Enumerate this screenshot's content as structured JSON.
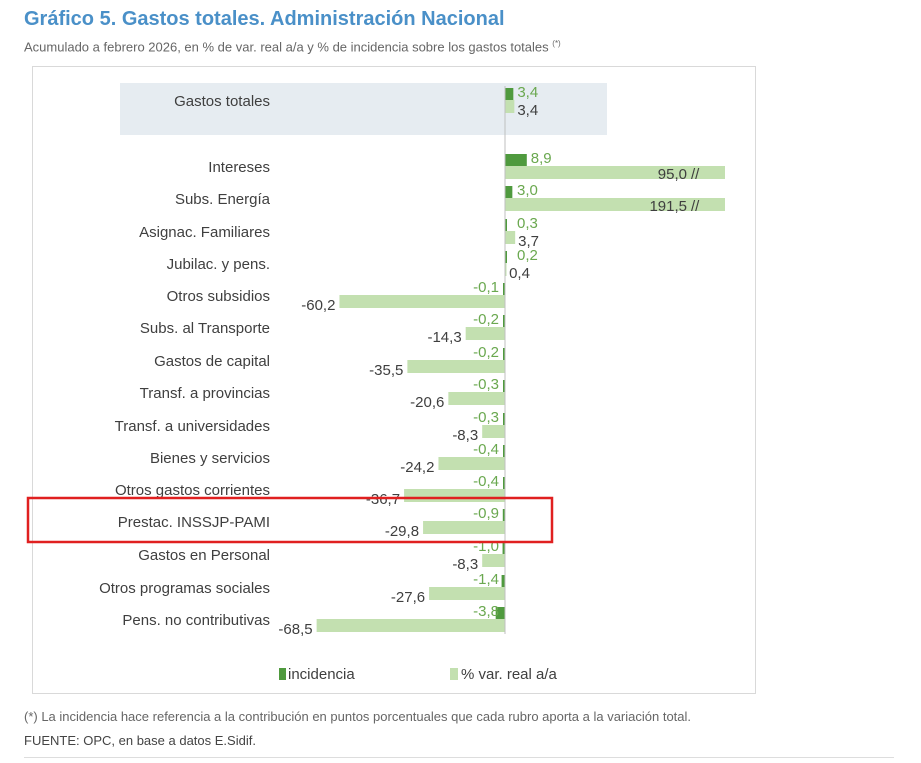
{
  "header": {
    "title": "Gráfico 5. Gastos totales. Administración Nacional",
    "subtitle": "Acumulado a febrero 2026, en % de var. real a/a y % de incidencia sobre los gastos totales",
    "subtitle_mark": "(*)"
  },
  "footer": {
    "note": "(*) La incidencia hace referencia a la contribución en puntos porcentuales que cada rubro aporta a la variación total.",
    "source": "FUENTE: OPC, en base a datos E.Sidif."
  },
  "colors": {
    "incidencia": "#4f9a3e",
    "var_real": "#c3e0b0",
    "label_green": "#6aa84f",
    "total_band": "#e6ecf1",
    "highlight": "#e02020",
    "text": "#595959"
  },
  "chart_data": {
    "type": "bar",
    "orientation": "horizontal",
    "categories": [
      "Gastos totales",
      "Intereses",
      "Subs. Energía",
      "Asignac. Familiares",
      "Jubilac. y pens.",
      "Otros subsidios",
      "Subs. al Transporte",
      "Gastos de capital",
      "Transf. a provincias",
      "Transf. a universidades",
      "Bienes y servicios",
      "Otros gastos corrientes",
      "Prestac. INSSJP-PAMI",
      "Gastos en Personal",
      "Otros programas sociales",
      "Pens. no contributivas"
    ],
    "series": [
      {
        "name": "incidencia",
        "values": [
          3.4,
          8.9,
          3.0,
          0.3,
          0.2,
          -0.1,
          -0.2,
          -0.2,
          -0.3,
          -0.3,
          -0.4,
          -0.4,
          -0.9,
          -1.0,
          -1.4,
          -3.8
        ],
        "labels": [
          "3,4",
          "8,9",
          "3,0",
          "0,3",
          "0,2",
          "-0,1",
          "-0,2",
          "-0,2",
          "-0,3",
          "-0,3",
          "-0,4",
          "-0,4",
          "-0,9",
          "-1,0",
          "-1,4",
          "-3,8"
        ]
      },
      {
        "name": "% var. real a/a",
        "values": [
          3.4,
          95.0,
          191.5,
          3.7,
          0.4,
          -60.2,
          -14.3,
          -35.5,
          -20.6,
          -8.3,
          -24.2,
          -36.7,
          -29.8,
          -8.3,
          -27.6,
          -68.5
        ],
        "labels": [
          "3,4",
          "95,0",
          "191,5",
          "3,7",
          "0,4",
          "-60,2",
          "-14,3",
          "-35,5",
          "-20,6",
          "-8,3",
          "-24,2",
          "-36,7",
          "-29,8",
          "-8,3",
          "-27,6",
          "-68,5"
        ],
        "axis_break_mark": "//",
        "axis_break_values": [
          95.0,
          191.5
        ]
      }
    ],
    "axis_break_at": 80,
    "highlighted_category": "Prestac. INSSJP-PAMI",
    "grid": false,
    "legend_position": "bottom"
  }
}
